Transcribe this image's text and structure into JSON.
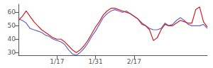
{
  "chart_data": {
    "type": "line",
    "x": [
      0,
      1,
      2,
      3,
      4,
      5,
      6,
      7,
      8,
      9,
      10,
      11,
      12,
      13,
      14,
      15,
      16,
      17,
      18,
      19,
      20,
      21,
      22,
      23,
      24,
      25,
      26,
      27,
      28,
      29,
      30,
      31,
      32,
      33,
      34,
      35,
      36,
      37,
      38,
      39,
      40,
      41,
      42,
      43,
      44,
      45,
      46,
      47,
      48,
      49
    ],
    "xlim": [
      0,
      49
    ],
    "xticks": [
      {
        "value": 10,
        "label": "1/17"
      },
      {
        "value": 20,
        "label": "1/31"
      },
      {
        "value": 30,
        "label": "2/17"
      }
    ],
    "ylim": [
      28,
      66
    ],
    "yticks": [
      30,
      40,
      50,
      60
    ],
    "grid": false,
    "series": [
      {
        "color": "#6666cc",
        "values": [
          55,
          54,
          52,
          48,
          47,
          46,
          45,
          43,
          42,
          40,
          39,
          38,
          36,
          32,
          29,
          28,
          30,
          33,
          37,
          42,
          46,
          51,
          56,
          59,
          61,
          62,
          61,
          60,
          61,
          59,
          57,
          55,
          51,
          50,
          48,
          47,
          47,
          48,
          52,
          50,
          51,
          54,
          56,
          54,
          51,
          50,
          50,
          50,
          51,
          48
        ]
      },
      {
        "color": "#cc2222",
        "values": [
          54,
          57,
          61,
          57,
          53,
          50,
          47,
          45,
          43,
          41,
          40,
          40,
          38,
          35,
          32,
          30,
          32,
          35,
          39,
          44,
          49,
          53,
          58,
          61,
          63,
          63,
          62,
          61,
          60,
          59,
          57,
          55,
          52,
          50,
          47,
          39,
          41,
          47,
          51,
          50,
          50,
          52,
          54,
          53,
          52,
          52,
          62,
          64,
          53,
          49
        ]
      }
    ]
  }
}
